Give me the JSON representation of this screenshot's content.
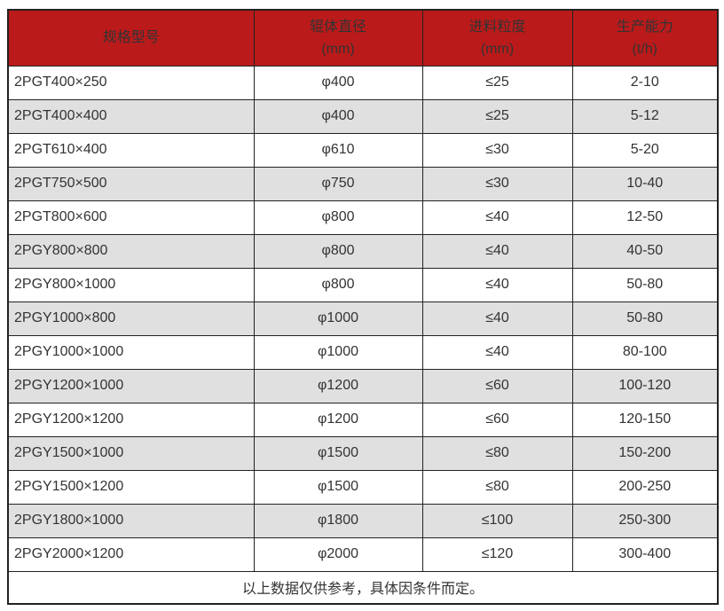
{
  "chart_data": {
    "type": "table",
    "columns": [
      {
        "title": "规格型号",
        "unit": ""
      },
      {
        "title": "辊体直径",
        "unit": "(mm)"
      },
      {
        "title": "进料粒度",
        "unit": "(mm)"
      },
      {
        "title": "生产能力",
        "unit": "(t/h)"
      }
    ],
    "rows": [
      [
        "2PGT400×250",
        "φ400",
        "≤25",
        "2-10"
      ],
      [
        "2PGT400×400",
        "φ400",
        "≤25",
        "5-12"
      ],
      [
        "2PGT610×400",
        "φ610",
        "≤30",
        "5-20"
      ],
      [
        "2PGT750×500",
        "φ750",
        "≤30",
        "10-40"
      ],
      [
        "2PGT800×600",
        "φ800",
        "≤40",
        "12-50"
      ],
      [
        "2PGY800×800",
        "φ800",
        "≤40",
        "40-50"
      ],
      [
        "2PGY800×1000",
        "φ800",
        "≤40",
        "50-80"
      ],
      [
        "2PGY1000×800",
        "φ1000",
        "≤40",
        "50-80"
      ],
      [
        "2PGY1000×1000",
        "φ1000",
        "≤40",
        "80-100"
      ],
      [
        "2PGY1200×1000",
        "φ1200",
        "≤60",
        "100-120"
      ],
      [
        "2PGY1200×1200",
        "φ1200",
        "≤60",
        "120-150"
      ],
      [
        "2PGY1500×1000",
        "φ1500",
        "≤80",
        "150-200"
      ],
      [
        "2PGY1500×1200",
        "φ1500",
        "≤80",
        "200-250"
      ],
      [
        "2PGY1800×1000",
        "φ1800",
        "≤100",
        "250-300"
      ],
      [
        "2PGY2000×1200",
        "φ2000",
        "≤120",
        "300-400"
      ]
    ],
    "footer_note": "以上数据仅供参考，具体因条件而定。"
  },
  "colors": {
    "header_bg": "#bb1a1a",
    "header_text": "#ffffff",
    "row_bg": "#ffffff",
    "row_alt_bg": "#e0e0e0",
    "border": "#222222",
    "body_text": "#333333"
  }
}
